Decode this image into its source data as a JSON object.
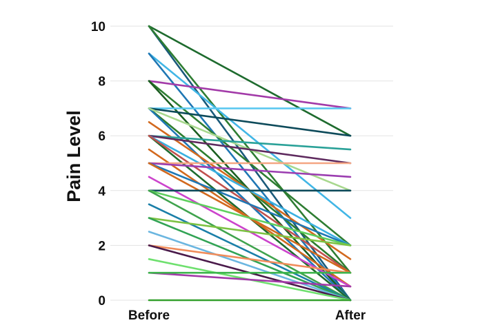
{
  "chart_data": {
    "type": "line",
    "categories": [
      "Before",
      "After"
    ],
    "ylabel": "Pain Level",
    "xlabel": "",
    "ylim": [
      0,
      10
    ],
    "yticks": [
      0,
      2,
      4,
      6,
      8,
      10
    ],
    "grid": true,
    "series": [
      {
        "color": "#1e6b2e",
        "values": [
          10,
          6
        ]
      },
      {
        "color": "#1a5a7a",
        "values": [
          10,
          0
        ]
      },
      {
        "color": "#2e7d32",
        "values": [
          10,
          1
        ]
      },
      {
        "color": "#41b6e6",
        "values": [
          9,
          3
        ]
      },
      {
        "color": "#1f77b4",
        "values": [
          9,
          0
        ]
      },
      {
        "color": "#a23aa8",
        "values": [
          8,
          7
        ]
      },
      {
        "color": "#2e7d32",
        "values": [
          8,
          2
        ]
      },
      {
        "color": "#1b5e20",
        "values": [
          8,
          0
        ]
      },
      {
        "color": "#5bc8f0",
        "values": [
          7,
          7
        ]
      },
      {
        "color": "#0d4a5a",
        "values": [
          7,
          6
        ]
      },
      {
        "color": "#2d7d2d",
        "values": [
          7,
          1
        ]
      },
      {
        "color": "#1f77b4",
        "values": [
          7,
          0
        ]
      },
      {
        "color": "#a8d88e",
        "values": [
          7,
          4
        ]
      },
      {
        "color": "#d2691e",
        "values": [
          6.5,
          1.5
        ]
      },
      {
        "color": "#2aa198",
        "values": [
          6,
          5.5
        ]
      },
      {
        "color": "#5e2a5e",
        "values": [
          6,
          5
        ]
      },
      {
        "color": "#3ab0e0",
        "values": [
          6,
          2
        ]
      },
      {
        "color": "#1e6b2e",
        "values": [
          6,
          0
        ]
      },
      {
        "color": "#c0504d",
        "values": [
          6,
          1
        ]
      },
      {
        "color": "#d2691e",
        "values": [
          5.5,
          0.5
        ]
      },
      {
        "color": "#f4a582",
        "values": [
          5,
          5
        ]
      },
      {
        "color": "#9b3db0",
        "values": [
          5,
          4.5
        ]
      },
      {
        "color": "#1f77b4",
        "values": [
          5,
          2
        ]
      },
      {
        "color": "#d2691e",
        "values": [
          5,
          1
        ]
      },
      {
        "color": "#cc44cc",
        "values": [
          4.5,
          0.5
        ]
      },
      {
        "color": "#0d4a5a",
        "values": [
          4,
          4
        ]
      },
      {
        "color": "#5ecf5e",
        "values": [
          4,
          2
        ]
      },
      {
        "color": "#3fa34d",
        "values": [
          4,
          0
        ]
      },
      {
        "color": "#1a7fa8",
        "values": [
          3.5,
          0
        ]
      },
      {
        "color": "#7cc242",
        "values": [
          3,
          2
        ]
      },
      {
        "color": "#31a354",
        "values": [
          3,
          0
        ]
      },
      {
        "color": "#6bb6e0",
        "values": [
          2.5,
          0
        ]
      },
      {
        "color": "#f08c5a",
        "values": [
          2,
          1
        ]
      },
      {
        "color": "#4a1a4a",
        "values": [
          2,
          0
        ]
      },
      {
        "color": "#6ee06e",
        "values": [
          1.5,
          0
        ]
      },
      {
        "color": "#a23aa8",
        "values": [
          1,
          0.5
        ]
      },
      {
        "color": "#3cb44b",
        "values": [
          1,
          1
        ]
      },
      {
        "color": "#33a02c",
        "values": [
          0,
          0
        ]
      }
    ]
  }
}
